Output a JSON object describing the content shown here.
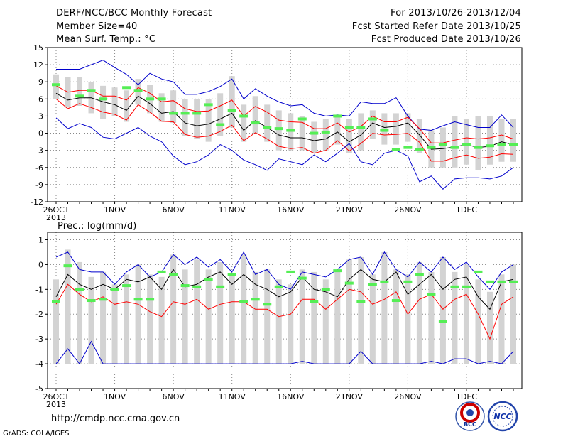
{
  "header": {
    "title": "DERF/NCC/BCC Monthly Forecast",
    "member_size": "Member Size=40",
    "variable": "Mean Surf. Temp.: °C",
    "period": "For 2013/10/26-2013/12/04",
    "started": "Fcst Started Refer Date 2013/10/25",
    "produced": "Fcst Produced Date 2013/10/26"
  },
  "precip_title": "Prec.: log(mm/d)",
  "footer": {
    "url": "http://cmdp.ncc.cma.gov.cn",
    "credit": "GrADS: COLA/IGES"
  },
  "logos": {
    "bcc": "BCC",
    "ncc": "NCC"
  },
  "colors": {
    "box": "#d3d3d3",
    "ensemble_mean": "#000000",
    "spread_lower": "#ff0000",
    "envelope": "#0000cc",
    "observed_marker": "#55ee55",
    "grid": "#888888"
  },
  "x_labels": [
    "26OCT",
    "1NOV",
    "6NOV",
    "11NOV",
    "16NOV",
    "21NOV",
    "26NOV",
    "1DEC"
  ],
  "x_year": "2013",
  "chart_data": [
    {
      "type": "line",
      "title": "Mean Surf. Temp.: °C",
      "xlim": [
        0,
        39
      ],
      "ylim": [
        -12,
        15
      ],
      "yticks": [
        15,
        12,
        9,
        6,
        3,
        0,
        -3,
        -6,
        -9,
        -12
      ],
      "grid": true,
      "series": [
        {
          "key": "max",
          "values": [
            11.2,
            11.2,
            11.2,
            12.0,
            12.8,
            11.5,
            10.3,
            8.5,
            10.5,
            9.5,
            9.0,
            6.8,
            6.8,
            7.3,
            8.2,
            9.5,
            6.0,
            7.8,
            6.5,
            5.5,
            4.8,
            5.0,
            3.5,
            3.0,
            3.2,
            3.0,
            5.5,
            5.2,
            5.2,
            6.2,
            3.0,
            0.7,
            0.5,
            1.3,
            2.0,
            1.5,
            1.0,
            1.0,
            3.2,
            1.0
          ]
        },
        {
          "key": "upper",
          "values": [
            8.3,
            7.2,
            7.5,
            7.5,
            6.5,
            6.5,
            5.8,
            8.0,
            7.0,
            5.5,
            5.7,
            4.3,
            3.8,
            3.9,
            4.8,
            5.8,
            3.0,
            4.7,
            3.7,
            2.3,
            2.0,
            1.9,
            0.8,
            0.8,
            1.8,
            0.2,
            1.2,
            3.0,
            2.0,
            2.0,
            2.8,
            0.8,
            -1.7,
            -1.7,
            -1.2,
            -0.8,
            -1.0,
            -0.8,
            -0.3,
            -1.0
          ]
        },
        {
          "key": "mean",
          "values": [
            7.0,
            5.8,
            6.2,
            6.2,
            5.5,
            5.0,
            4.0,
            6.5,
            5.2,
            3.5,
            3.8,
            1.8,
            1.3,
            1.6,
            2.5,
            3.5,
            0.5,
            2.2,
            1.0,
            -0.3,
            -0.8,
            -0.8,
            -1.3,
            -1.0,
            0.2,
            -1.5,
            -0.3,
            1.8,
            1.0,
            1.2,
            1.8,
            -0.3,
            -2.8,
            -2.7,
            -2.4,
            -2.0,
            -2.5,
            -2.3,
            -1.5,
            -2.0
          ]
        },
        {
          "key": "lower",
          "values": [
            6.0,
            4.3,
            5.2,
            4.5,
            3.7,
            3.3,
            2.3,
            5.0,
            3.7,
            2.1,
            2.0,
            -0.2,
            -0.7,
            -0.5,
            0.3,
            1.4,
            -1.3,
            0.1,
            -1.0,
            -2.3,
            -2.7,
            -2.5,
            -3.5,
            -3.0,
            -1.3,
            -3.1,
            -1.8,
            0.0,
            -0.3,
            -0.2,
            0.0,
            -1.6,
            -4.9,
            -4.9,
            -4.3,
            -3.8,
            -4.4,
            -4.2,
            -3.6,
            -3.7
          ]
        },
        {
          "key": "min",
          "values": [
            2.7,
            0.8,
            1.7,
            1.0,
            -0.7,
            -1.0,
            0.0,
            1.0,
            -0.5,
            -1.5,
            -4.0,
            -5.5,
            -5.0,
            -3.8,
            -2.0,
            -3.0,
            -4.7,
            -5.5,
            -6.5,
            -4.5,
            -5.0,
            -5.5,
            -3.8,
            -5.0,
            -3.5,
            -1.8,
            -5.0,
            -5.5,
            -3.5,
            -3.0,
            -4.0,
            -8.5,
            -7.5,
            -9.8,
            -8.0,
            -7.8,
            -7.8,
            -8.0,
            -7.5,
            -6.0
          ]
        }
      ],
      "boxes": [
        [
          6.0,
          10.3
        ],
        [
          4.5,
          9.8
        ],
        [
          4.8,
          9.8
        ],
        [
          3.5,
          9.0
        ],
        [
          2.5,
          8.3
        ],
        [
          3.0,
          8.0
        ],
        [
          2.0,
          7.5
        ],
        [
          5.0,
          9.5
        ],
        [
          3.5,
          8.5
        ],
        [
          2.0,
          7.0
        ],
        [
          1.8,
          7.5
        ],
        [
          -0.5,
          6.0
        ],
        [
          -1.0,
          6.0
        ],
        [
          -1.5,
          6.0
        ],
        [
          -0.5,
          7.0
        ],
        [
          1.0,
          10.0
        ],
        [
          -1.5,
          5.0
        ],
        [
          0.0,
          6.5
        ],
        [
          -1.5,
          5.0
        ],
        [
          -3.0,
          4.0
        ],
        [
          -3.0,
          3.5
        ],
        [
          -3.0,
          3.0
        ],
        [
          -3.5,
          2.0
        ],
        [
          -3.0,
          2.5
        ],
        [
          -2.0,
          3.0
        ],
        [
          -3.5,
          2.5
        ],
        [
          -3.0,
          3.5
        ],
        [
          -1.0,
          4.0
        ],
        [
          -2.0,
          3.5
        ],
        [
          -2.0,
          3.5
        ],
        [
          -1.5,
          3.5
        ],
        [
          -3.5,
          2.5
        ],
        [
          -6.0,
          0.5
        ],
        [
          -6.0,
          1.0
        ],
        [
          -6.0,
          3.0
        ],
        [
          -5.5,
          2.5
        ],
        [
          -6.5,
          3.0
        ],
        [
          -5.5,
          3.0
        ],
        [
          -5.0,
          2.5
        ],
        [
          -5.0,
          2.5
        ]
      ],
      "observed": [
        8.5,
        null,
        6.5,
        7.5,
        6.0,
        null,
        8.0,
        7.5,
        6.0,
        6.0,
        3.5,
        3.5,
        3.5,
        5.0,
        1.5,
        4.0,
        3.0,
        1.8,
        1.0,
        0.8,
        0.5,
        2.5,
        0.0,
        0.2,
        3.0,
        1.0,
        1.0,
        2.5,
        0.5,
        -2.8,
        -2.5,
        -2.8,
        -2.5,
        -2.0,
        -2.5,
        -2.0,
        -2.5,
        -2.2,
        -2.0,
        -2.0
      ]
    },
    {
      "type": "line",
      "title": "Prec.: log(mm/d)",
      "xlim": [
        0,
        39
      ],
      "ylim": [
        -5,
        1.3
      ],
      "yticks": [
        1,
        0,
        -1,
        -2,
        -3,
        -4,
        -5
      ],
      "grid": true,
      "series": [
        {
          "key": "max",
          "values": [
            0.3,
            0.5,
            -0.2,
            -0.3,
            -0.3,
            -0.8,
            -0.3,
            0.0,
            -0.5,
            -0.3,
            0.4,
            0.0,
            0.3,
            -0.1,
            0.2,
            -0.3,
            0.5,
            -0.4,
            -0.2,
            -0.8,
            -1.0,
            -0.3,
            -0.4,
            -0.5,
            -0.2,
            0.2,
            0.3,
            -0.4,
            0.5,
            -0.2,
            -0.5,
            0.1,
            -0.3,
            0.3,
            -0.2,
            0.1,
            -0.5,
            -1.0,
            -0.3,
            0.0
          ]
        },
        {
          "key": "mean",
          "values": [
            -1.3,
            -0.4,
            -0.8,
            -1.0,
            -0.8,
            -1.0,
            -0.6,
            -0.7,
            -0.5,
            -1.0,
            -0.2,
            -0.9,
            -0.8,
            -0.5,
            -0.3,
            -0.8,
            -0.4,
            -0.8,
            -1.0,
            -1.3,
            -1.1,
            -0.5,
            -1.0,
            -1.1,
            -1.3,
            -0.6,
            -0.2,
            -0.6,
            -0.7,
            -0.3,
            -1.2,
            -0.8,
            -0.4,
            -1.0,
            -0.6,
            -0.5,
            -1.3,
            -1.8,
            -0.7,
            -0.6
          ]
        },
        {
          "key": "upper",
          "values": [
            -1.6,
            -0.8,
            -1.2,
            -1.5,
            -1.3,
            -1.6,
            -1.5,
            -1.6,
            -1.9,
            -2.1,
            -1.5,
            -1.6,
            -1.4,
            -1.8,
            -1.6,
            -1.5,
            -1.5,
            -1.8,
            -1.8,
            -2.1,
            -2.0,
            -1.4,
            -1.4,
            -1.8,
            -1.4,
            -1.0,
            -1.1,
            -1.6,
            -1.4,
            -1.1,
            -2.0,
            -1.4,
            -1.2,
            -1.8,
            -1.4,
            -1.2,
            -2.0,
            -3.0,
            -1.6,
            -1.3
          ]
        },
        {
          "key": "min",
          "values": [
            -4.0,
            -3.4,
            -4.0,
            -3.1,
            -4.0,
            -4.0,
            -4.0,
            -4.0,
            -4.0,
            -4.0,
            -4.0,
            -4.0,
            -4.0,
            -4.0,
            -4.0,
            -4.0,
            -4.0,
            -4.0,
            -4.0,
            -4.0,
            -4.0,
            -3.9,
            -4.0,
            -4.0,
            -4.0,
            -4.0,
            -3.5,
            -4.0,
            -4.0,
            -4.0,
            -4.0,
            -4.0,
            -3.9,
            -4.0,
            -3.8,
            -3.8,
            -4.0,
            -3.9,
            -4.0,
            -3.5
          ]
        }
      ],
      "boxes": [
        [
          -4,
          -0.6
        ],
        [
          -4,
          0.6
        ],
        [
          -4,
          0.1
        ],
        [
          -4,
          -0.5
        ],
        [
          -4,
          -0.3
        ],
        [
          -4,
          -0.8
        ],
        [
          -4,
          -0.4
        ],
        [
          -4,
          0.0
        ],
        [
          -4,
          -0.4
        ],
        [
          -4,
          -0.5
        ],
        [
          -4,
          0.4
        ],
        [
          -4,
          -0.2
        ],
        [
          -4,
          0.2
        ],
        [
          -4,
          -0.2
        ],
        [
          -4,
          0.1
        ],
        [
          -4,
          -0.4
        ],
        [
          -4,
          0.4
        ],
        [
          -4,
          -0.3
        ],
        [
          -4,
          -0.2
        ],
        [
          -4,
          -0.6
        ],
        [
          -4,
          -0.8
        ],
        [
          -4,
          -0.2
        ],
        [
          -4,
          -0.3
        ],
        [
          -4,
          -0.6
        ],
        [
          -4,
          -0.3
        ],
        [
          -4,
          0.2
        ],
        [
          -4,
          0.3
        ],
        [
          -4,
          -0.4
        ],
        [
          -4,
          0.5
        ],
        [
          -4,
          -0.2
        ],
        [
          -4,
          -0.4
        ],
        [
          -4,
          0.1
        ],
        [
          -4,
          -0.3
        ],
        [
          -4,
          0.3
        ],
        [
          -4,
          -0.3
        ],
        [
          -4,
          0.0
        ],
        [
          -4,
          -0.6
        ],
        [
          -4,
          -1.1
        ],
        [
          -4,
          -0.4
        ],
        [
          -4,
          0.0
        ]
      ],
      "observed": [
        -1.5,
        -0.05,
        -1.0,
        -1.45,
        -1.4,
        -1.0,
        -0.85,
        -1.4,
        -1.4,
        -0.3,
        -0.4,
        -0.85,
        -0.9,
        -0.6,
        -0.9,
        -0.4,
        -1.5,
        -1.4,
        -1.6,
        -0.9,
        -0.3,
        -0.55,
        -1.5,
        -1.0,
        -0.25,
        -0.75,
        -1.5,
        -0.8,
        -0.7,
        -1.45,
        -0.7,
        -0.4,
        -1.2,
        -2.3,
        -0.9,
        -0.9,
        -0.3,
        -0.7,
        -0.7,
        -0.7
      ]
    }
  ]
}
